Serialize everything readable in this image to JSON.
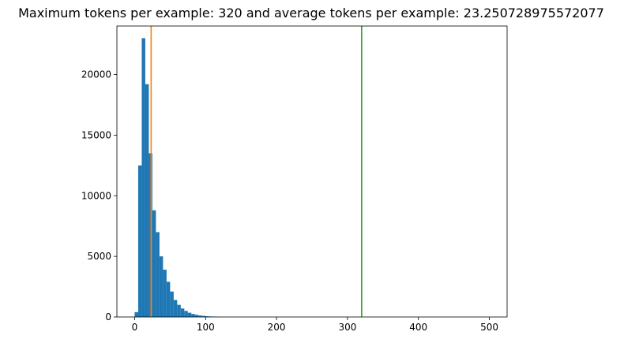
{
  "chart_data": {
    "type": "bar",
    "title": "Maximum tokens per example: 320 and average tokens per example: 23.250728975572077",
    "xlabel": "",
    "ylabel": "",
    "xlim": [
      -25,
      525
    ],
    "ylim": [
      0,
      24000
    ],
    "x_ticks": [
      0,
      100,
      200,
      300,
      400,
      500
    ],
    "y_ticks": [
      0,
      5000,
      10000,
      15000,
      20000
    ],
    "bin_width": 5,
    "bins": [
      {
        "x": 0,
        "count": 400
      },
      {
        "x": 5,
        "count": 12500
      },
      {
        "x": 10,
        "count": 23000
      },
      {
        "x": 15,
        "count": 19200
      },
      {
        "x": 20,
        "count": 13500
      },
      {
        "x": 25,
        "count": 8800
      },
      {
        "x": 30,
        "count": 7000
      },
      {
        "x": 35,
        "count": 5000
      },
      {
        "x": 40,
        "count": 3900
      },
      {
        "x": 45,
        "count": 2900
      },
      {
        "x": 50,
        "count": 2100
      },
      {
        "x": 55,
        "count": 1400
      },
      {
        "x": 60,
        "count": 1000
      },
      {
        "x": 65,
        "count": 700
      },
      {
        "x": 70,
        "count": 500
      },
      {
        "x": 75,
        "count": 350
      },
      {
        "x": 80,
        "count": 250
      },
      {
        "x": 85,
        "count": 180
      },
      {
        "x": 90,
        "count": 120
      },
      {
        "x": 95,
        "count": 90
      },
      {
        "x": 100,
        "count": 60
      },
      {
        "x": 105,
        "count": 40
      },
      {
        "x": 110,
        "count": 30
      },
      {
        "x": 115,
        "count": 20
      }
    ],
    "vlines": [
      {
        "x": 23.25,
        "color": "#ff7f0e"
      },
      {
        "x": 320,
        "color": "#2ca02c"
      }
    ],
    "bar_color": "#1f77b4",
    "grid": false,
    "legend": "none"
  }
}
